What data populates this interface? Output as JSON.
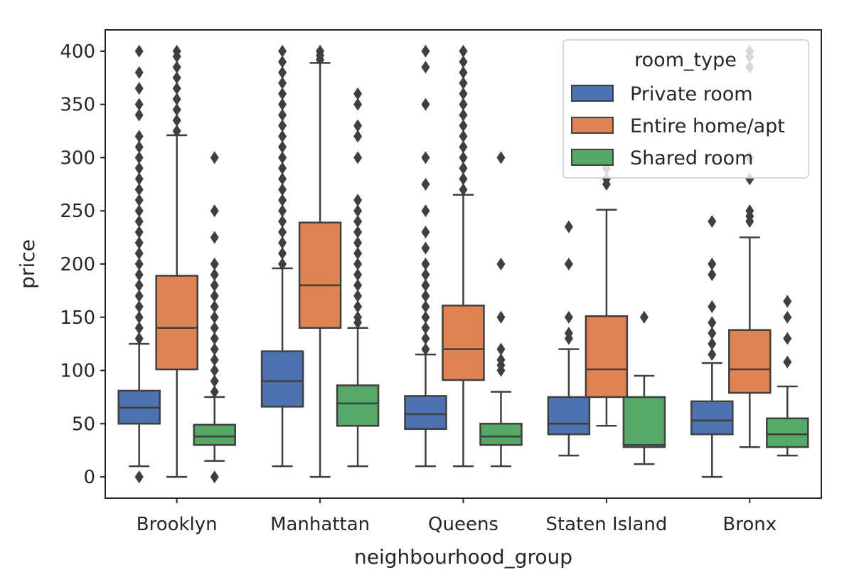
{
  "chart_data": {
    "type": "box",
    "title": "",
    "xlabel": "neighbourhood_group",
    "ylabel": "price",
    "ylim": [
      -20,
      420
    ],
    "yticks": [
      0,
      50,
      100,
      150,
      200,
      250,
      300,
      350,
      400
    ],
    "categories": [
      "Brooklyn",
      "Manhattan",
      "Queens",
      "Staten Island",
      "Bronx"
    ],
    "legend": {
      "title": "room_type",
      "placement": "top-right"
    },
    "grid": false,
    "series": [
      {
        "name": "Private room",
        "color": "#4c72b0",
        "boxes": [
          {
            "whislo": 10,
            "q1": 50,
            "med": 65,
            "q3": 81,
            "whishi": 125,
            "fliers": [
              0,
              0,
              130,
              140,
              150,
              160,
              170,
              180,
              190,
              200,
              210,
              220,
              230,
              240,
              250,
              260,
              270,
              280,
              290,
              300,
              310,
              320,
              340,
              350,
              365,
              380,
              400
            ]
          },
          {
            "whislo": 10,
            "q1": 66,
            "med": 90,
            "q3": 118,
            "whishi": 196,
            "fliers": [
              200,
              210,
              220,
              230,
              240,
              250,
              260,
              270,
              280,
              290,
              300,
              310,
              320,
              330,
              340,
              350,
              360,
              370,
              380,
              390,
              400
            ]
          },
          {
            "whislo": 10,
            "q1": 45,
            "med": 59,
            "q3": 76,
            "whishi": 115,
            "fliers": [
              120,
              130,
              140,
              150,
              160,
              170,
              180,
              190,
              200,
              215,
              230,
              250,
              275,
              300,
              350,
              385,
              400
            ]
          },
          {
            "whislo": 20,
            "q1": 40,
            "med": 50,
            "q3": 75,
            "whishi": 120,
            "fliers": [
              130,
              135,
              150,
              200,
              235
            ]
          },
          {
            "whislo": 0,
            "q1": 40,
            "med": 53,
            "q3": 71,
            "whishi": 107,
            "fliers": [
              115,
              125,
              135,
              145,
              160,
              190,
              200,
              240
            ]
          }
        ]
      },
      {
        "name": "Entire home/apt",
        "color": "#dd8452",
        "boxes": [
          {
            "whislo": 0,
            "q1": 101,
            "med": 140,
            "q3": 189,
            "whishi": 321,
            "fliers": [
              325,
              335,
              345,
              355,
              365,
              375,
              385,
              395,
              400
            ]
          },
          {
            "whislo": 0,
            "q1": 140,
            "med": 180,
            "q3": 239,
            "whishi": 389,
            "fliers": [
              392,
              396,
              400
            ]
          },
          {
            "whislo": 10,
            "q1": 91,
            "med": 120,
            "q3": 161,
            "whishi": 265,
            "fliers": [
              270,
              280,
              290,
              300,
              310,
              320,
              330,
              340,
              350,
              360,
              370,
              380,
              390,
              400
            ]
          },
          {
            "whislo": 48,
            "q1": 75,
            "med": 101,
            "q3": 151,
            "whishi": 251,
            "fliers": [
              275,
              280,
              290,
              300
            ]
          },
          {
            "whislo": 28,
            "q1": 79,
            "med": 101,
            "q3": 138,
            "whishi": 225,
            "fliers": [
              240,
              245,
              250,
              280,
              300,
              385,
              395,
              400
            ]
          }
        ]
      },
      {
        "name": "Shared room",
        "color": "#55a868",
        "boxes": [
          {
            "whislo": 15,
            "q1": 30,
            "med": 38,
            "q3": 49,
            "whishi": 75,
            "fliers": [
              0,
              80,
              90,
              100,
              110,
              120,
              130,
              140,
              150,
              160,
              170,
              180,
              190,
              200,
              225,
              250,
              300
            ]
          },
          {
            "whislo": 10,
            "q1": 48,
            "med": 69,
            "q3": 86,
            "whishi": 140,
            "fliers": [
              145,
              150,
              160,
              170,
              180,
              190,
              200,
              210,
              220,
              230,
              240,
              250,
              260,
              300,
              320,
              330,
              350,
              360
            ]
          },
          {
            "whislo": 10,
            "q1": 30,
            "med": 38,
            "q3": 50,
            "whishi": 80,
            "fliers": [
              100,
              105,
              110,
              120,
              150,
              200,
              300
            ]
          },
          {
            "whislo": 12,
            "q1": 28,
            "med": 30,
            "q3": 75,
            "whishi": 95,
            "fliers": [
              150
            ]
          },
          {
            "whislo": 20,
            "q1": 28,
            "med": 40,
            "q3": 55,
            "whishi": 85,
            "fliers": [
              108,
              130,
              150,
              165
            ]
          }
        ]
      }
    ]
  }
}
